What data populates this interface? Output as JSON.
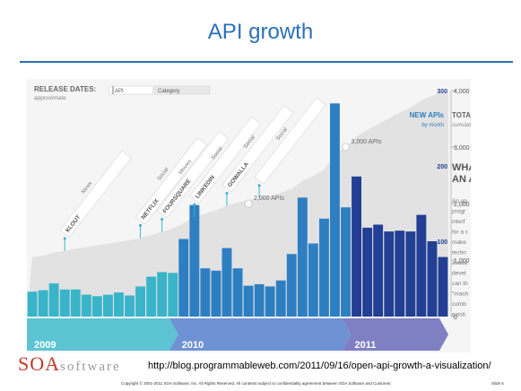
{
  "slide": {
    "title": "API growth",
    "source_url": "http://blog.programmableweb.com/2011/09/16/open-api-growth-a-visualization/",
    "logo_text": "SOA",
    "logo_suffix": "software",
    "footer": "Copyright © 2001-2011 SOA Software, Inc. All Rights Reserved. All contents subject to confidentiality agreement between SOA Software and Customer.",
    "slide_number": "Slide 5"
  },
  "colors": {
    "bar_2009": "#3ab4c8",
    "bar_2010": "#2e7fc2",
    "bar_2011": "#223f94",
    "area": "#e2e2e2",
    "band_2009": "#5cc4d3",
    "band_2010": "#6f92d4",
    "band_2011": "#7f7fc4"
  },
  "chart_data": {
    "type": "bar",
    "legend_label": "RELEASE DATES:",
    "legend_sub": "approximate",
    "filter_api": "API",
    "filter_category": "Category",
    "left_axis_title": "NEW APIs",
    "left_axis_sub": "by month",
    "right_axis_title": "TOTAL APIs",
    "right_axis_sub": "cumulative",
    "left_ticks": [
      "300",
      "200",
      "100"
    ],
    "right_ticks": [
      "4,000",
      "3,000",
      "2,000",
      "1,000",
      "0"
    ],
    "left_ylim": [
      0,
      300
    ],
    "right_ylim": [
      0,
      4000
    ],
    "new_apis_per_month": [
      33,
      35,
      44,
      36,
      36,
      29,
      27,
      29,
      32,
      28,
      40,
      53,
      59,
      58,
      103,
      148,
      64,
      61,
      91,
      64,
      41,
      43,
      40,
      48,
      83,
      158,
      97,
      130,
      283,
      145,
      186,
      118,
      122,
      113,
      114,
      113,
      135,
      100,
      79
    ],
    "year_of_bar": [
      "2009",
      "2009",
      "2009",
      "2009",
      "2009",
      "2009",
      "2009",
      "2009",
      "2009",
      "2009",
      "2009",
      "2009",
      "2009",
      "2009",
      "2010",
      "2010",
      "2010",
      "2010",
      "2010",
      "2010",
      "2010",
      "2010",
      "2010",
      "2010",
      "2010",
      "2010",
      "2010",
      "2010",
      "2010",
      "2010",
      "2011",
      "2011",
      "2011",
      "2011",
      "2011",
      "2011",
      "2011",
      "2011",
      "2011"
    ],
    "total_apis_cumulative": [
      1050,
      1080,
      1130,
      1160,
      1200,
      1230,
      1260,
      1290,
      1320,
      1350,
      1390,
      1440,
      1500,
      1560,
      1650,
      1760,
      1820,
      1880,
      1960,
      2020,
      2060,
      2100,
      2140,
      2190,
      2260,
      2400,
      2490,
      2600,
      2880,
      3000,
      3190,
      3300,
      3410,
      3510,
      3610,
      3700,
      3820,
      3910,
      3980
    ],
    "annotations": [
      {
        "label": "2,000 APIs",
        "index": 20,
        "value": 2000
      },
      {
        "label": "3,000 APIs",
        "index": 29,
        "value": 3000
      }
    ],
    "years": [
      {
        "label": "2009",
        "start": 0,
        "end": 14
      },
      {
        "label": "2010",
        "start": 14,
        "end": 30
      },
      {
        "label": "2011",
        "start": 30,
        "end": 39
      }
    ],
    "releases": [
      {
        "label": "KLOUT",
        "category": "News",
        "index": 3
      },
      {
        "label": "NETFLIX",
        "category": "Social",
        "index": 10
      },
      {
        "label": "FOURSQUARE",
        "category": "Movies",
        "index": 12
      },
      {
        "label": "LINKEDIN",
        "category": "Social",
        "index": 15
      },
      {
        "label": "GOWALLA",
        "category": "Social",
        "index": 18
      },
      {
        "label": "",
        "category": "Social",
        "index": 21
      }
    ],
    "side_text": [
      "WHA",
      "AN A",
      "An ap",
      "progr",
      "interf",
      "for a c",
      "make",
      "techn",
      "availa",
      "devel",
      "can th",
      "\"mash",
      "comb",
      "existi"
    ]
  }
}
